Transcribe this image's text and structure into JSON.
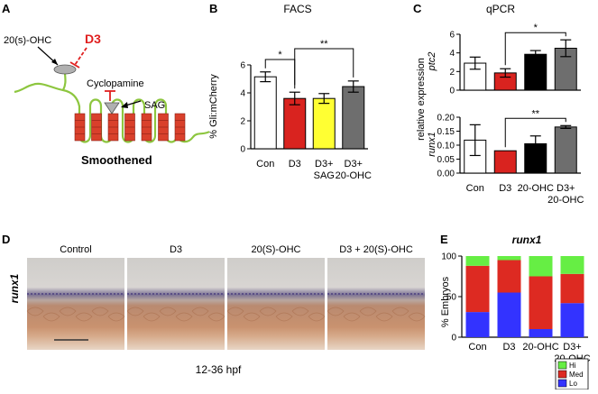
{
  "panels": {
    "A": {
      "letter": "A",
      "labels": {
        "ohc": "20(s)-OHC",
        "d3": "D3",
        "cyclopamine": "Cyclopamine",
        "sag": "SAG",
        "receptor": "Smoothened"
      },
      "colors": {
        "membrane": "#8dc63f",
        "helix": "#d9402b",
        "inhibit": "#e02020",
        "ligand": "#b0b0b0"
      }
    },
    "B": {
      "letter": "B",
      "chart_data": {
        "type": "bar",
        "title": "FACS",
        "ylabel": "% Gli:mCherry",
        "ylim": [
          0,
          6
        ],
        "yticks": [
          "0",
          "2",
          "4",
          "6"
        ],
        "categories": [
          "Con",
          "D3",
          "D3+\nSAG",
          "D3+\n20-OHC"
        ],
        "values": [
          5.15,
          3.6,
          3.6,
          4.45
        ],
        "errors": [
          0.35,
          0.45,
          0.35,
          0.4
        ],
        "colors": [
          "#ffffff",
          "#d9231f",
          "#ffff33",
          "#6e6e6e"
        ],
        "significance": [
          {
            "from": 0,
            "to": 1,
            "label": "*"
          },
          {
            "from": 1,
            "to": 3,
            "label": "**"
          }
        ]
      }
    },
    "C": {
      "letter": "C",
      "title": "qPCR",
      "ylabel_common": "relative expression",
      "categories": [
        "Con",
        "D3",
        "20-OHC",
        "D3+\n20-OHC"
      ],
      "colors": [
        "#ffffff",
        "#d9231f",
        "#000000",
        "#6e6e6e"
      ],
      "chart_data": [
        {
          "type": "bar",
          "gene": "ptc2",
          "ylim": [
            0,
            6
          ],
          "yticks": [
            "0",
            "2",
            "4",
            "6"
          ],
          "values": [
            2.9,
            1.85,
            3.85,
            4.5
          ],
          "errors": [
            0.65,
            0.45,
            0.4,
            0.9
          ],
          "significance": [
            {
              "from": 1,
              "to": 3,
              "label": "*"
            }
          ]
        },
        {
          "type": "bar",
          "gene": "runx1",
          "ylim": [
            0,
            0.2
          ],
          "yticks": [
            "0.00",
            "0.05",
            "0.10",
            "0.15",
            "0.20"
          ],
          "values": [
            0.118,
            0.08,
            0.105,
            0.165
          ],
          "errors": [
            0.055,
            0.0,
            0.028,
            0.005
          ],
          "significance": [
            {
              "from": 1,
              "to": 3,
              "label": "**"
            }
          ]
        }
      ]
    },
    "D": {
      "letter": "D",
      "gene": "runx1",
      "conditions": [
        "Control",
        "D3",
        "20(S)-OHC",
        "D3 + 20(S)-OHC"
      ],
      "stage": "12-36 hpf"
    },
    "E": {
      "letter": "E",
      "chart_data": {
        "type": "bar",
        "stacked": true,
        "title": "runx1",
        "ylabel": "% Embryos",
        "ylim": [
          0,
          100
        ],
        "yticks": [
          "0",
          "50",
          "100"
        ],
        "categories": [
          "Con",
          "D3",
          "20-OHC",
          "D3+\n20-OHC"
        ],
        "series": [
          {
            "name": "Lo",
            "color": "#3333ff",
            "values": [
              31,
              55,
              10,
              42
            ]
          },
          {
            "name": "Med",
            "color": "#dd2a22",
            "values": [
              57,
              40,
              65,
              36
            ]
          },
          {
            "name": "Hi",
            "color": "#66ee44",
            "values": [
              12,
              5,
              25,
              22
            ]
          }
        ],
        "legend_position": "bottom-right"
      }
    }
  }
}
